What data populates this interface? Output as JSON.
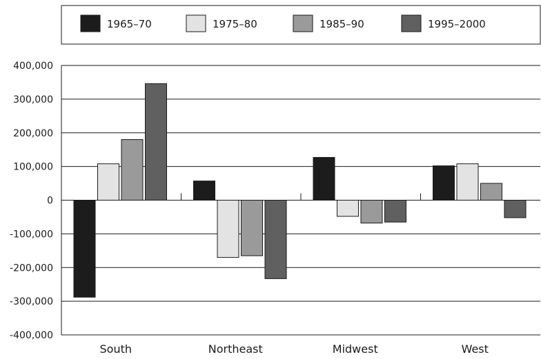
{
  "chart_data": {
    "type": "bar",
    "title": "",
    "xlabel": "",
    "ylabel": "",
    "categories": [
      "South",
      "Northeast",
      "Midwest",
      "West"
    ],
    "ylim": [
      -400000,
      400000
    ],
    "yticks": [
      400000,
      300000,
      200000,
      100000,
      0,
      -100000,
      -200000,
      -300000,
      -400000
    ],
    "ytick_labels": [
      "400,000",
      "300,000",
      "200,000",
      "100,000",
      "0",
      "-100,000",
      "-200,000",
      "-300,000",
      "-400,000"
    ],
    "grid": true,
    "legend_position": "top",
    "series": [
      {
        "name": "1965–70",
        "color": "#1c1c1c",
        "values": [
          -288000,
          57000,
          127000,
          102000
        ]
      },
      {
        "name": "1975–80",
        "color": "#e3e3e3",
        "values": [
          108000,
          -170000,
          -48000,
          108000
        ]
      },
      {
        "name": "1985–90",
        "color": "#9a9a9a",
        "values": [
          180000,
          -165000,
          -68000,
          50000
        ]
      },
      {
        "name": "1995–2000",
        "color": "#606060",
        "values": [
          346000,
          -233000,
          -65000,
          -52000
        ]
      }
    ]
  }
}
